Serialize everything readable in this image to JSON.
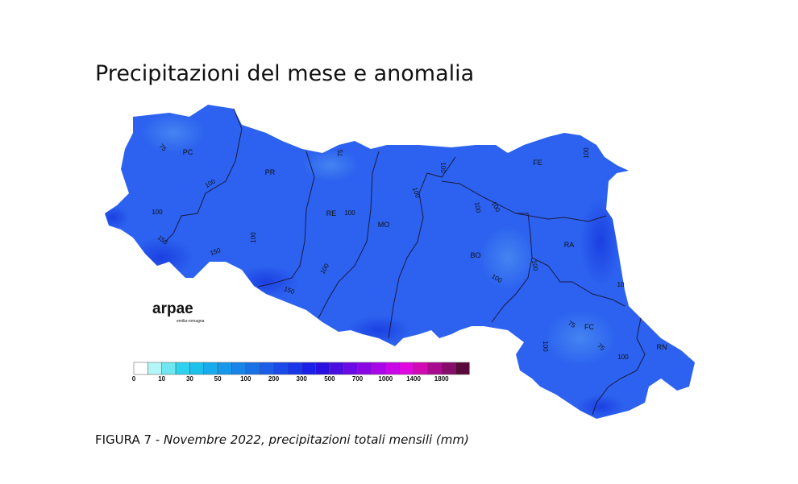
{
  "header": {
    "title": "Precipitazioni del mese e anomalia"
  },
  "map": {
    "provinces": [
      "PC",
      "PR",
      "RE",
      "MO",
      "BO",
      "FE",
      "RA",
      "FC",
      "RN"
    ],
    "contour_labels": [
      75,
      100,
      100,
      150,
      150,
      100,
      75,
      100,
      100,
      100,
      100,
      150,
      100,
      100,
      100,
      100,
      100,
      75,
      75,
      100,
      100,
      10
    ]
  },
  "logo": {
    "name": "arpae",
    "region": "emilia-romagna"
  },
  "legend": {
    "ticks": [
      0,
      10,
      30,
      50,
      100,
      200,
      300,
      500,
      700,
      1000,
      1400,
      1800
    ],
    "colors": [
      "#ffffff",
      "#b4f5f8",
      "#6fe6f0",
      "#2fd2ee",
      "#1ec0ec",
      "#18acec",
      "#1898ea",
      "#1885e8",
      "#1872e6",
      "#1a5ee6",
      "#1a4ae8",
      "#1838ea",
      "#1a20e8",
      "#2a10e0",
      "#4a0ee0",
      "#6a0ae4",
      "#8a08e6",
      "#a808e8",
      "#c808e8",
      "#e008e0",
      "#d20ab4",
      "#a80c8e",
      "#880c6c",
      "#5a0a3a"
    ]
  },
  "caption": {
    "label": "FIGURA 7 - ",
    "text": "Novembre  2022, precipitazioni totali mensili (mm)"
  }
}
